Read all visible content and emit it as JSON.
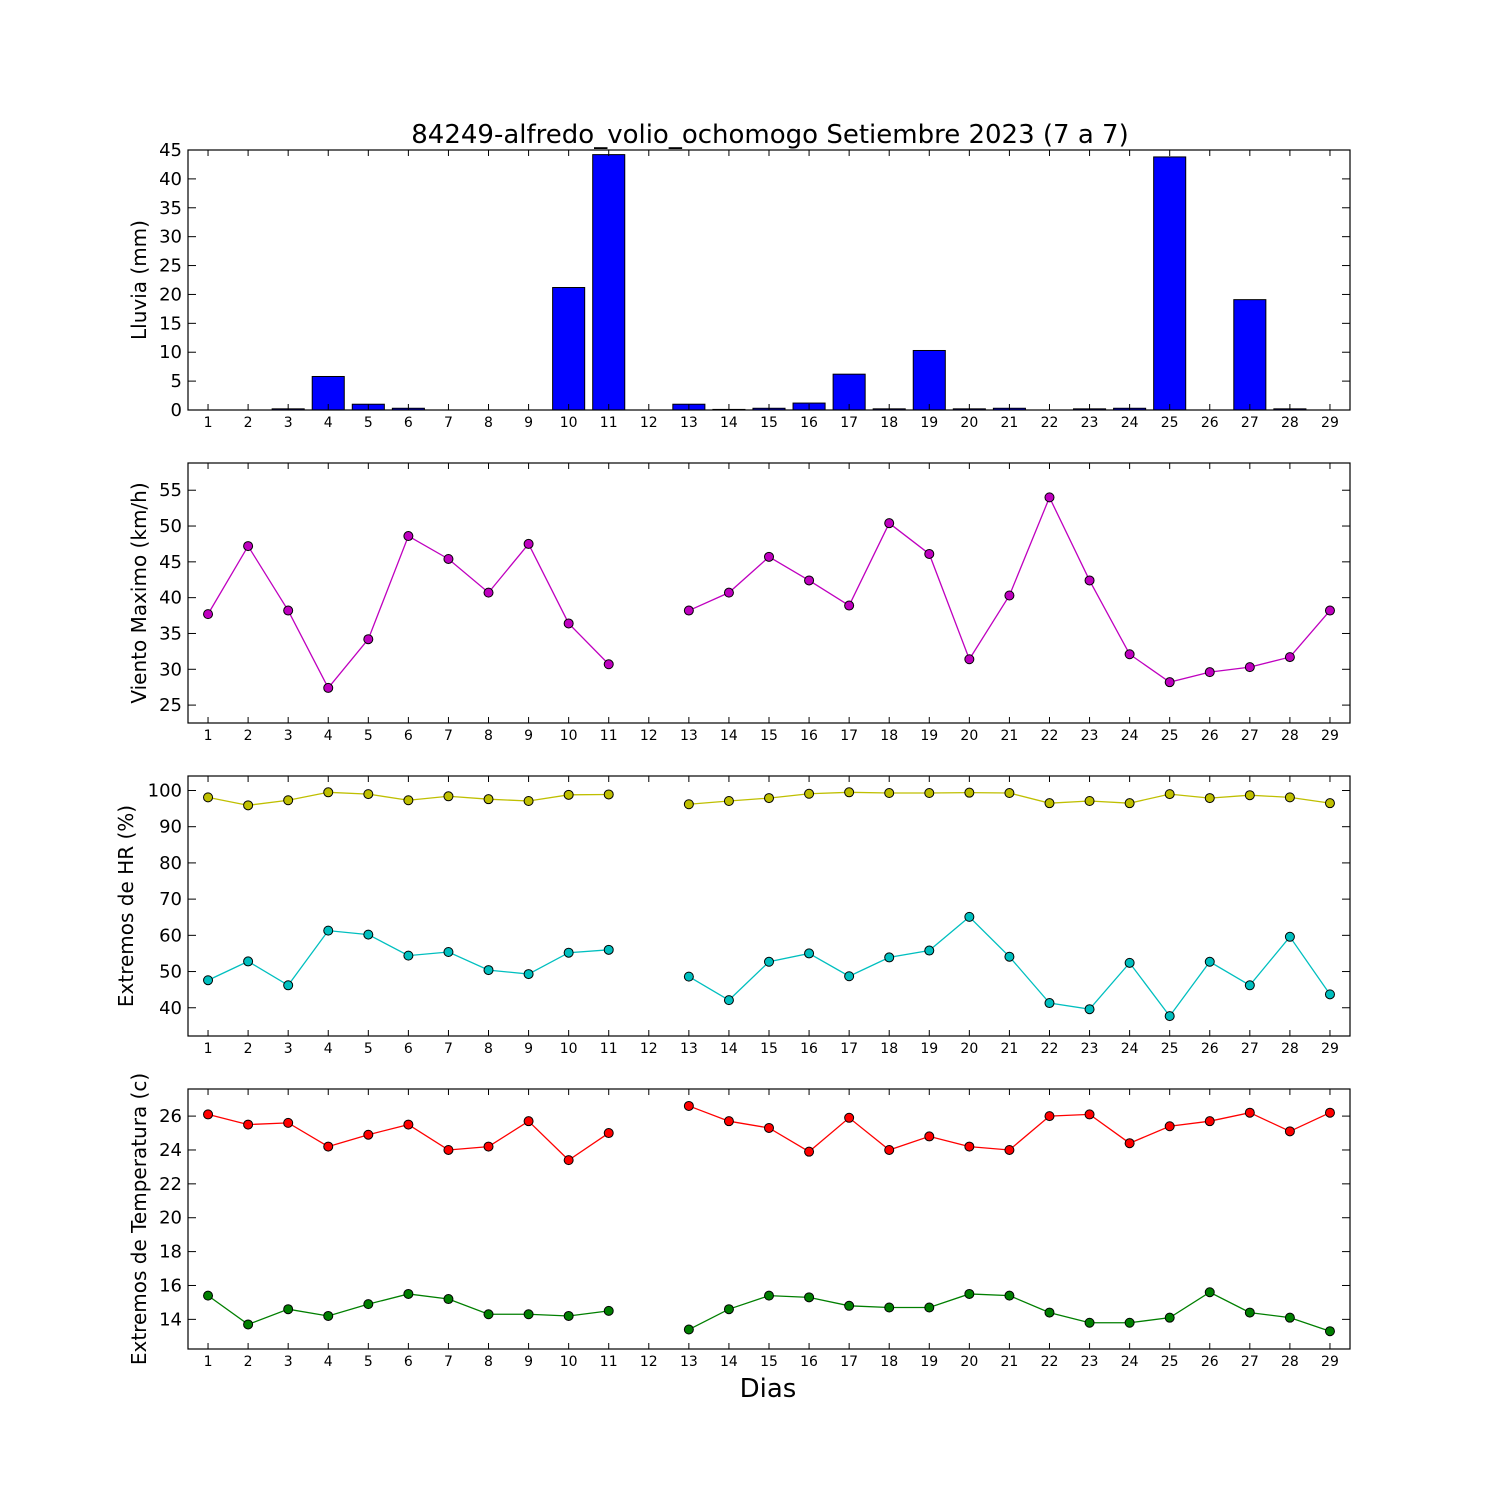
{
  "chart_data": [
    {
      "type": "bar",
      "title": "84249-alfredo_volio_ochomogo Setiembre 2023  (7 a 7)",
      "ylabel": "Lluvia (mm)",
      "xlabel": "",
      "x": [
        1,
        2,
        3,
        4,
        5,
        6,
        7,
        8,
        9,
        10,
        11,
        12,
        13,
        14,
        15,
        16,
        17,
        18,
        19,
        20,
        21,
        22,
        23,
        24,
        25,
        26,
        27,
        28,
        29
      ],
      "ylim": [
        0,
        45
      ],
      "yticks": [
        0,
        5,
        10,
        15,
        20,
        25,
        30,
        35,
        40,
        45
      ],
      "series": [
        {
          "color": "#0000ff",
          "values": [
            0,
            0,
            0.2,
            5.8,
            1.0,
            0.3,
            0,
            0,
            0,
            21.2,
            44.2,
            0,
            1.0,
            0.1,
            0.3,
            1.2,
            6.2,
            0.2,
            10.3,
            0.2,
            0.3,
            0,
            0.2,
            0.3,
            43.8,
            0,
            19.1,
            0.2,
            0
          ]
        }
      ]
    },
    {
      "type": "line",
      "title": "",
      "ylabel": "Viento Maximo (km/h)",
      "xlabel": "",
      "x": [
        1,
        2,
        3,
        4,
        5,
        6,
        7,
        8,
        9,
        10,
        11,
        12,
        13,
        14,
        15,
        16,
        17,
        18,
        19,
        20,
        21,
        22,
        23,
        24,
        25,
        26,
        27,
        28,
        29
      ],
      "ylim": [
        22.5,
        58.8
      ],
      "yticks": [
        25,
        30,
        35,
        40,
        45,
        50,
        55
      ],
      "series": [
        {
          "color": "#bf00bf",
          "values": [
            37.7,
            47.2,
            38.2,
            27.4,
            34.2,
            48.6,
            45.4,
            40.7,
            47.5,
            36.4,
            30.7,
            null,
            38.2,
            40.7,
            45.7,
            42.4,
            38.9,
            50.4,
            46.1,
            31.4,
            40.3,
            54.0,
            42.4,
            32.1,
            28.2,
            29.6,
            30.3,
            31.7,
            38.2
          ]
        }
      ]
    },
    {
      "type": "line",
      "title": "",
      "ylabel": "Extremos de HR (%)",
      "xlabel": "",
      "x": [
        1,
        2,
        3,
        4,
        5,
        6,
        7,
        8,
        9,
        10,
        11,
        12,
        13,
        14,
        15,
        16,
        17,
        18,
        19,
        20,
        21,
        22,
        23,
        24,
        25,
        26,
        27,
        28,
        29
      ],
      "ylim": [
        32.2,
        104
      ],
      "yticks": [
        40,
        50,
        60,
        70,
        80,
        90,
        100
      ],
      "series": [
        {
          "color": "#bfbf00",
          "values": [
            98.1,
            95.9,
            97.3,
            99.5,
            99.0,
            97.3,
            98.4,
            97.6,
            97.1,
            98.8,
            98.9,
            null,
            96.2,
            97.1,
            97.9,
            99.1,
            99.5,
            99.3,
            99.3,
            99.4,
            99.3,
            96.5,
            97.1,
            96.5,
            99.0,
            97.9,
            98.7,
            98.1,
            96.5
          ]
        },
        {
          "color": "#00bfbf",
          "values": [
            47.6,
            52.8,
            46.2,
            61.3,
            60.2,
            54.4,
            55.4,
            50.4,
            49.3,
            55.2,
            56.0,
            null,
            48.6,
            42.1,
            52.7,
            55.0,
            48.7,
            53.9,
            55.8,
            65.1,
            54.1,
            41.3,
            39.6,
            52.4,
            37.7,
            52.7,
            46.2,
            59.6,
            43.7
          ]
        }
      ]
    },
    {
      "type": "line",
      "title": "",
      "ylabel": "Extremos de Temperatura (c)",
      "xlabel": "Dias",
      "x": [
        1,
        2,
        3,
        4,
        5,
        6,
        7,
        8,
        9,
        10,
        11,
        12,
        13,
        14,
        15,
        16,
        17,
        18,
        19,
        20,
        21,
        22,
        23,
        24,
        25,
        26,
        27,
        28,
        29
      ],
      "ylim": [
        12.25,
        27.6
      ],
      "yticks": [
        14,
        16,
        18,
        20,
        22,
        24,
        26
      ],
      "series": [
        {
          "color": "#ff0000",
          "values": [
            26.1,
            25.5,
            25.6,
            24.2,
            24.9,
            25.5,
            24.0,
            24.2,
            25.7,
            23.4,
            25.0,
            null,
            26.6,
            25.7,
            25.3,
            23.9,
            25.9,
            24.0,
            24.8,
            24.2,
            24.0,
            26.0,
            26.1,
            24.4,
            25.4,
            25.7,
            26.2,
            25.1,
            26.2
          ]
        },
        {
          "color": "#007f00",
          "values": [
            15.4,
            13.7,
            14.6,
            14.2,
            14.9,
            15.5,
            15.2,
            14.3,
            14.3,
            14.2,
            14.5,
            null,
            13.4,
            14.6,
            15.4,
            15.3,
            14.8,
            14.7,
            14.7,
            15.5,
            15.4,
            14.4,
            13.8,
            13.8,
            14.1,
            15.6,
            14.4,
            14.1,
            13.3
          ]
        }
      ]
    }
  ]
}
